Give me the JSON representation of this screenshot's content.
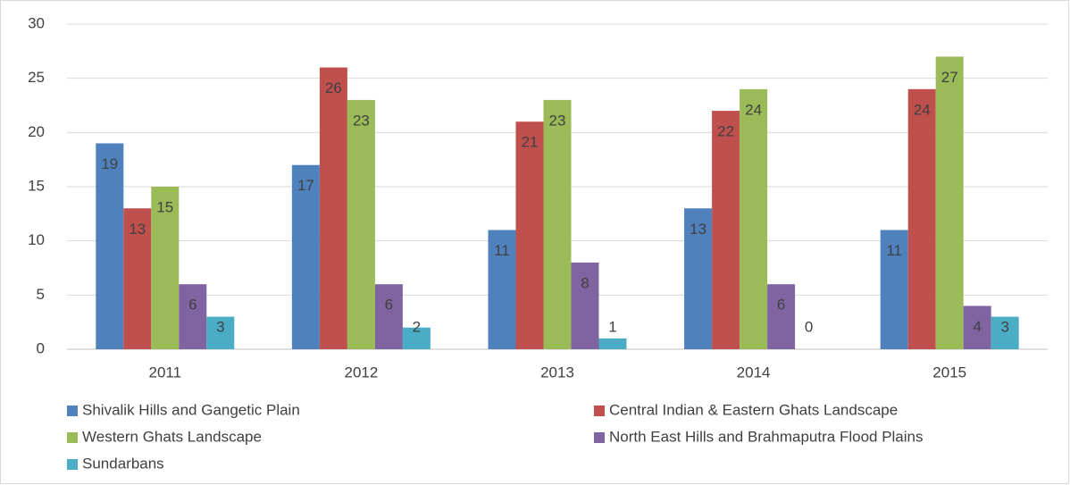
{
  "chart_data": {
    "type": "bar",
    "categories": [
      "2011",
      "2012",
      "2013",
      "2014",
      "2015"
    ],
    "series": [
      {
        "name": "Shivalik Hills and Gangetic Plain",
        "color": "#4f81bd",
        "values": [
          19,
          17,
          11,
          13,
          11
        ]
      },
      {
        "name": "Central Indian & Eastern Ghats Landscape",
        "color": "#c0504d",
        "values": [
          13,
          26,
          21,
          22,
          24
        ]
      },
      {
        "name": "Western Ghats Landscape",
        "color": "#9bbb59",
        "values": [
          15,
          23,
          23,
          24,
          27
        ]
      },
      {
        "name": "North East Hills and Brahmaputra Flood Plains",
        "color": "#8064a2",
        "values": [
          6,
          6,
          8,
          6,
          4
        ]
      },
      {
        "name": "Sundarbans",
        "color": "#4bacc6",
        "values": [
          3,
          2,
          1,
          0,
          3
        ]
      }
    ],
    "ylim": [
      0,
      30
    ],
    "yticks": [
      0,
      5,
      10,
      15,
      20,
      25,
      30
    ],
    "grid": true,
    "legend": "bottom"
  }
}
